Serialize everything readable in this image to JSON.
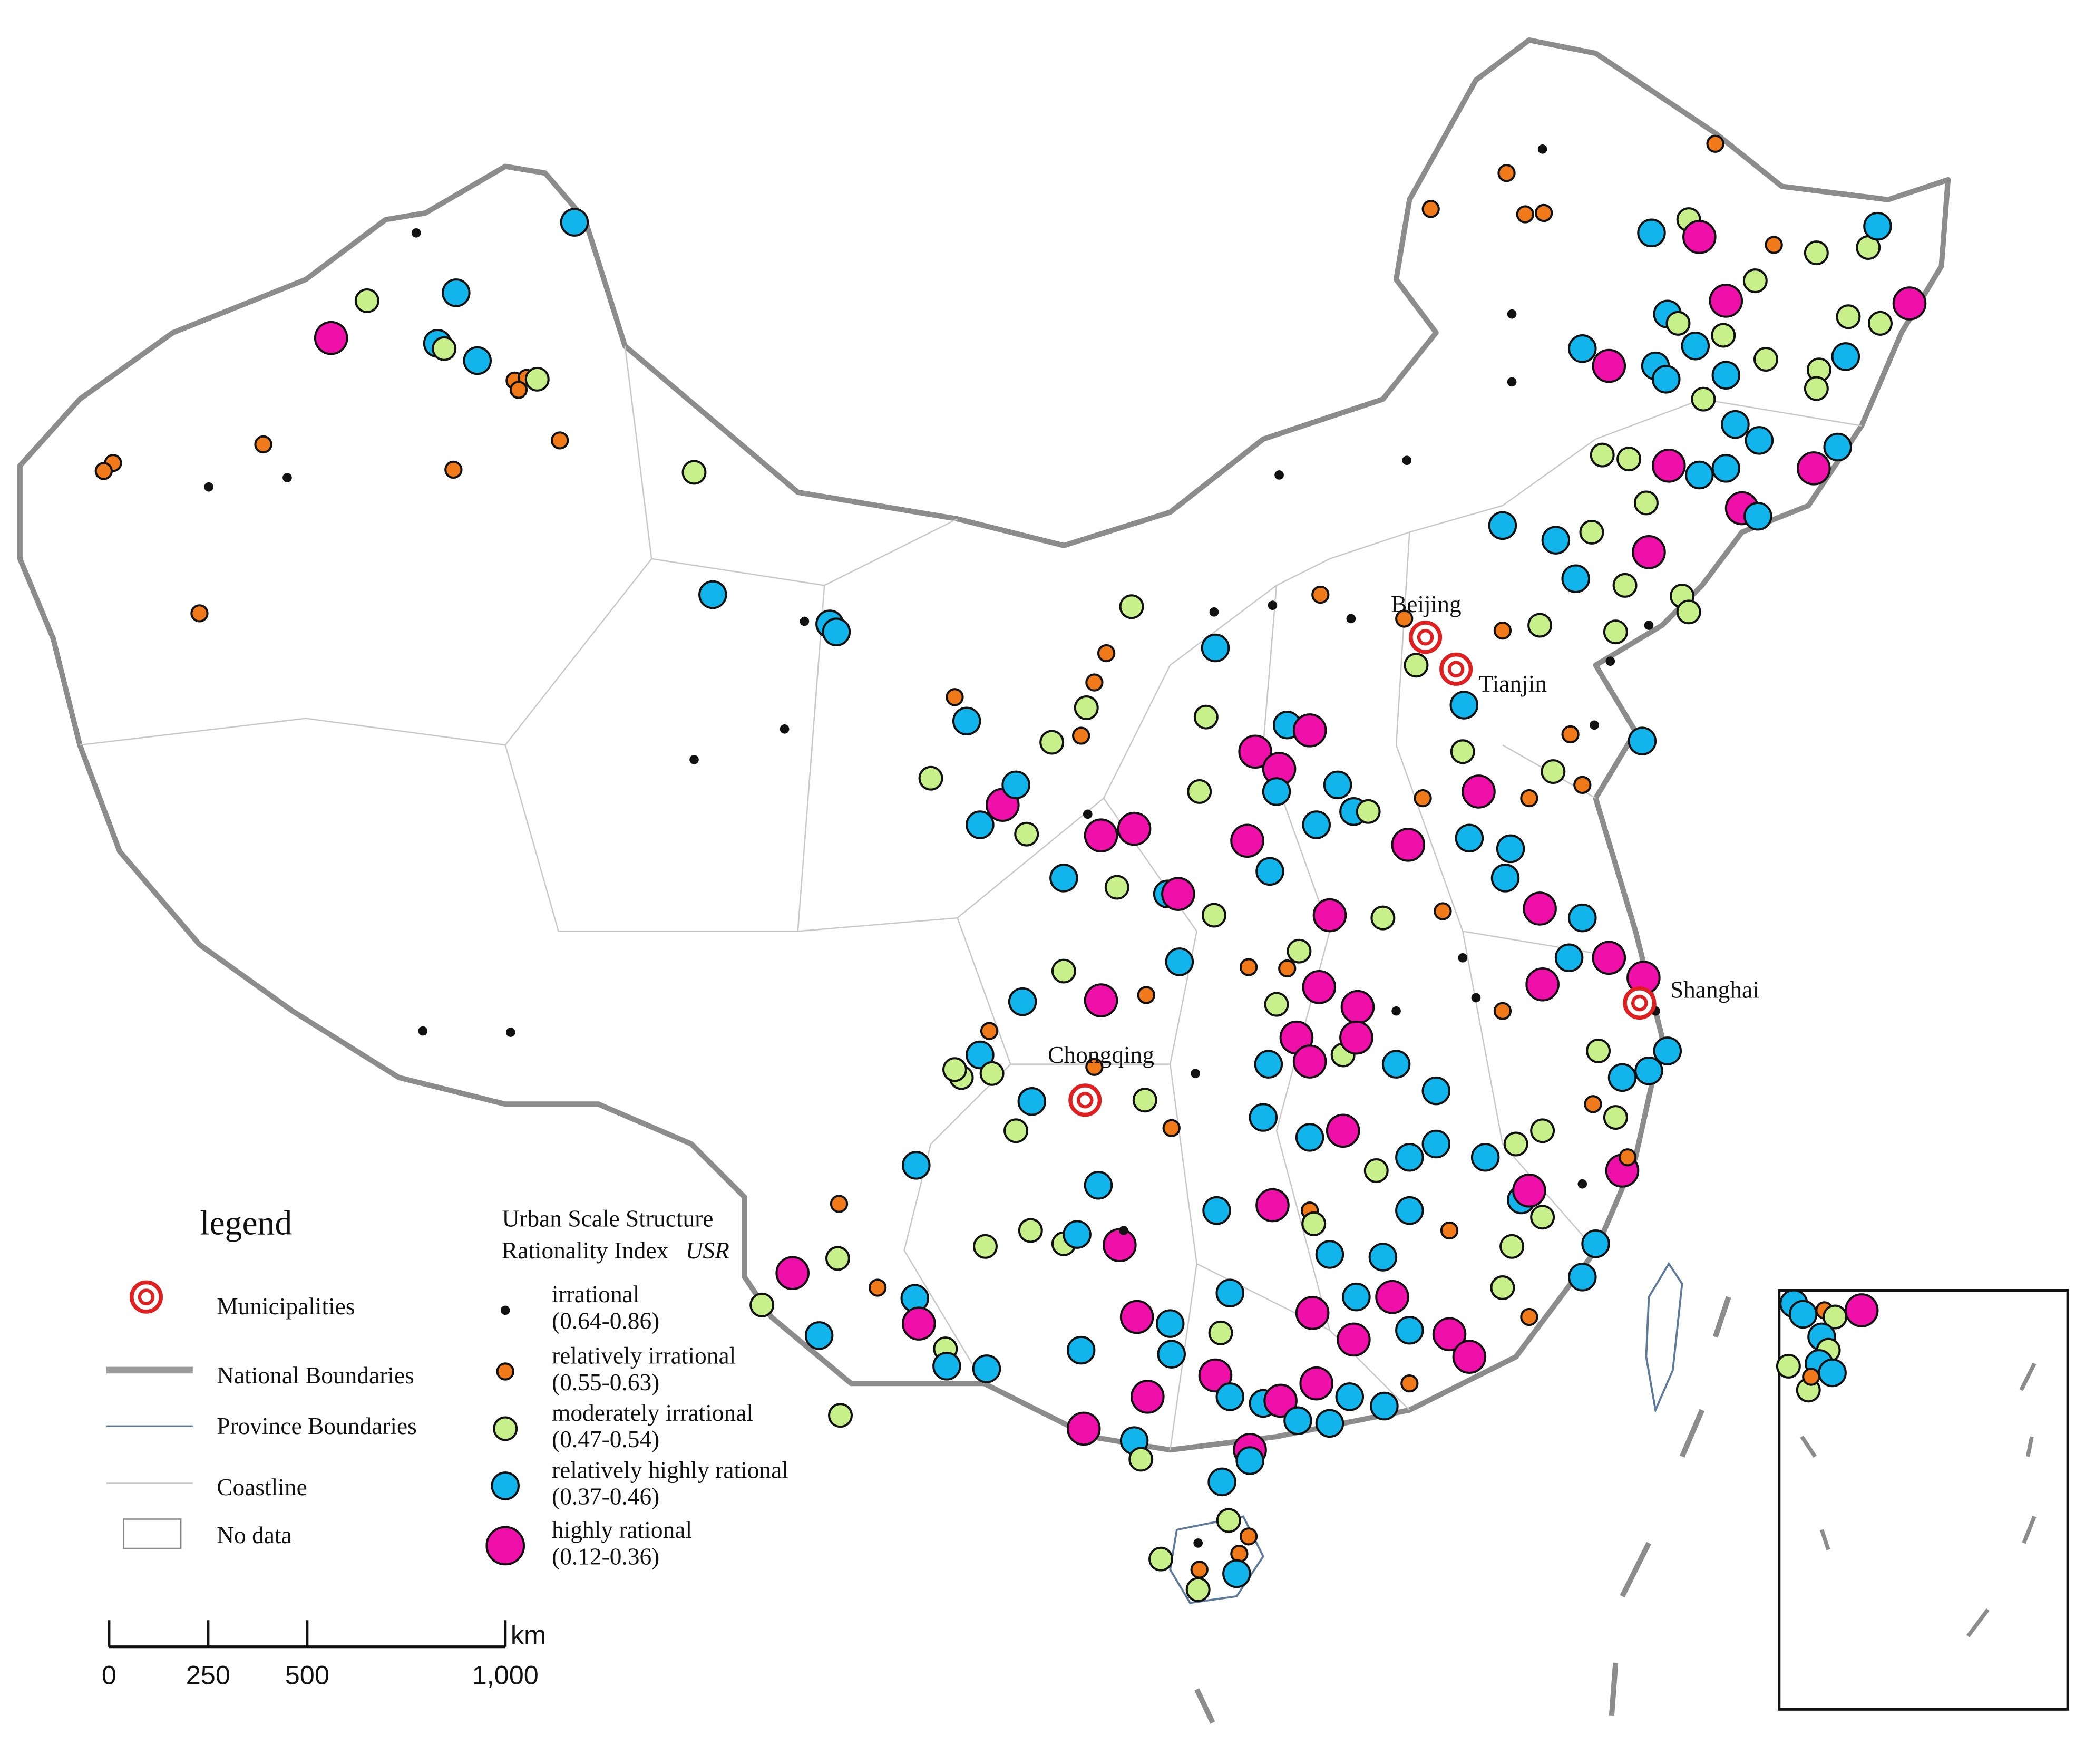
{
  "map": {
    "cities": [
      {
        "name": "Beijing"
      },
      {
        "name": "Tianjin"
      },
      {
        "name": "Shanghai"
      },
      {
        "name": "Chongqing"
      }
    ],
    "legend": {
      "title": "legend",
      "items": [
        "Municipalities",
        "National Boundaries",
        "Province Boundaries",
        "Coastline",
        "No data"
      ]
    },
    "index": {
      "title_lines": [
        "Urban Scale Structure",
        "Rationality Index"
      ],
      "abbr": "USR",
      "classes": [
        {
          "name": "irrational",
          "range": "(0.64-0.86)",
          "color": "#111111"
        },
        {
          "name": "relatively irrational",
          "range": "(0.55-0.63)",
          "color": "#f07a1a"
        },
        {
          "name": "moderately irrational",
          "range": "(0.47-0.54)",
          "color": "#c8f08a"
        },
        {
          "name": "relatively highly rational",
          "range": "(0.37-0.46)",
          "color": "#12b4ec"
        },
        {
          "name": "highly rational",
          "range": "(0.12-0.36)",
          "color": "#ee10a8"
        }
      ]
    },
    "scale_bar": {
      "ticks": [
        0,
        250,
        500,
        {
          "value": 1000,
          "label": "1,000"
        }
      ],
      "unit": "km"
    }
  }
}
